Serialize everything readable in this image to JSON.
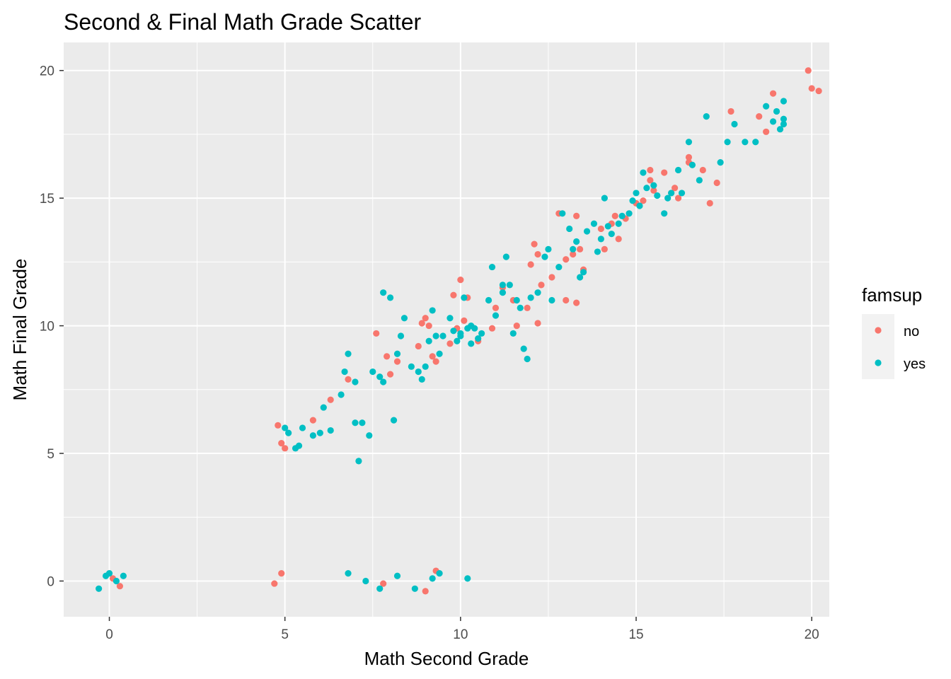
{
  "chart_data": {
    "type": "scatter",
    "title": "Second & Final Math Grade Scatter",
    "xlabel": "Math Second Grade",
    "ylabel": "Math Final Grade",
    "xlim": [
      -1.3,
      20.5
    ],
    "ylim": [
      -1.4,
      21.1
    ],
    "xticks": [
      0,
      5,
      10,
      15,
      20
    ],
    "yticks": [
      0,
      5,
      10,
      15,
      20
    ],
    "grid": true,
    "legend": {
      "title": "famsup",
      "placement": "right"
    },
    "series": [
      {
        "name": "no",
        "color": "#F8766D",
        "points": [
          [
            0.1,
            0.1
          ],
          [
            0.3,
            -0.2
          ],
          [
            4.8,
            6.1
          ],
          [
            4.9,
            5.4
          ],
          [
            5.0,
            5.2
          ],
          [
            4.7,
            -0.1
          ],
          [
            4.9,
            0.3
          ],
          [
            5.8,
            6.3
          ],
          [
            6.3,
            7.1
          ],
          [
            6.8,
            7.9
          ],
          [
            7.6,
            9.7
          ],
          [
            7.9,
            8.8
          ],
          [
            8.0,
            8.1
          ],
          [
            8.2,
            8.6
          ],
          [
            8.8,
            9.2
          ],
          [
            8.9,
            10.1
          ],
          [
            9.0,
            10.3
          ],
          [
            9.1,
            10.0
          ],
          [
            9.3,
            8.6
          ],
          [
            9.2,
            8.8
          ],
          [
            9.7,
            9.3
          ],
          [
            9.8,
            11.2
          ],
          [
            10.0,
            11.8
          ],
          [
            10.1,
            10.2
          ],
          [
            9.9,
            9.9
          ],
          [
            10.2,
            11.1
          ],
          [
            10.5,
            9.4
          ],
          [
            10.9,
            9.9
          ],
          [
            11.0,
            10.7
          ],
          [
            11.2,
            11.5
          ],
          [
            11.5,
            11.0
          ],
          [
            11.6,
            10.0
          ],
          [
            11.9,
            10.7
          ],
          [
            12.0,
            12.4
          ],
          [
            12.1,
            13.2
          ],
          [
            12.3,
            11.6
          ],
          [
            12.2,
            12.8
          ],
          [
            12.6,
            11.9
          ],
          [
            12.8,
            14.4
          ],
          [
            13.0,
            12.6
          ],
          [
            13.2,
            12.8
          ],
          [
            13.3,
            14.3
          ],
          [
            13.4,
            13.0
          ],
          [
            13.3,
            10.9
          ],
          [
            13.5,
            12.2
          ],
          [
            14.0,
            13.8
          ],
          [
            14.3,
            14.0
          ],
          [
            14.4,
            14.3
          ],
          [
            14.1,
            13.0
          ],
          [
            14.5,
            13.4
          ],
          [
            14.7,
            14.2
          ],
          [
            15.2,
            14.9
          ],
          [
            15.4,
            16.1
          ],
          [
            15.4,
            15.7
          ],
          [
            15.5,
            15.3
          ],
          [
            15.0,
            14.8
          ],
          [
            15.8,
            16.0
          ],
          [
            16.0,
            15.2
          ],
          [
            16.1,
            15.4
          ],
          [
            16.2,
            15.0
          ],
          [
            16.5,
            16.6
          ],
          [
            16.5,
            16.4
          ],
          [
            16.9,
            16.1
          ],
          [
            17.1,
            14.8
          ],
          [
            17.3,
            15.6
          ],
          [
            17.7,
            18.4
          ],
          [
            18.5,
            18.2
          ],
          [
            18.7,
            17.6
          ],
          [
            18.9,
            19.1
          ],
          [
            19.9,
            20.0
          ],
          [
            20.0,
            19.3
          ],
          [
            20.2,
            19.2
          ],
          [
            7.8,
            -0.1
          ],
          [
            9.0,
            -0.4
          ],
          [
            9.3,
            0.4
          ],
          [
            12.2,
            10.1
          ],
          [
            13.0,
            11.0
          ]
        ]
      },
      {
        "name": "yes",
        "color": "#00BFC4",
        "points": [
          [
            -0.3,
            -0.3
          ],
          [
            -0.1,
            0.2
          ],
          [
            0.0,
            0.3
          ],
          [
            0.2,
            0.0
          ],
          [
            0.4,
            0.2
          ],
          [
            5.0,
            6.0
          ],
          [
            5.1,
            5.8
          ],
          [
            5.3,
            5.2
          ],
          [
            5.4,
            5.3
          ],
          [
            5.5,
            6.0
          ],
          [
            5.8,
            5.7
          ],
          [
            6.0,
            5.8
          ],
          [
            6.1,
            6.8
          ],
          [
            6.3,
            5.9
          ],
          [
            6.6,
            7.3
          ],
          [
            6.7,
            8.2
          ],
          [
            6.8,
            8.9
          ],
          [
            7.0,
            7.8
          ],
          [
            7.0,
            6.2
          ],
          [
            7.2,
            6.2
          ],
          [
            7.1,
            4.7
          ],
          [
            7.4,
            5.7
          ],
          [
            7.5,
            8.2
          ],
          [
            7.7,
            8.0
          ],
          [
            7.8,
            7.8
          ],
          [
            7.8,
            11.3
          ],
          [
            8.0,
            11.1
          ],
          [
            8.1,
            6.3
          ],
          [
            8.2,
            8.9
          ],
          [
            8.3,
            9.6
          ],
          [
            8.4,
            10.3
          ],
          [
            8.6,
            8.4
          ],
          [
            8.8,
            8.2
          ],
          [
            8.9,
            7.9
          ],
          [
            9.0,
            8.4
          ],
          [
            9.1,
            9.4
          ],
          [
            9.2,
            10.6
          ],
          [
            9.3,
            9.6
          ],
          [
            9.4,
            8.9
          ],
          [
            9.5,
            9.6
          ],
          [
            9.7,
            10.3
          ],
          [
            9.8,
            9.8
          ],
          [
            9.9,
            9.4
          ],
          [
            10.0,
            9.7
          ],
          [
            10.2,
            9.9
          ],
          [
            10.1,
            11.1
          ],
          [
            10.3,
            9.3
          ],
          [
            10.4,
            9.9
          ],
          [
            10.5,
            9.5
          ],
          [
            10.6,
            9.7
          ],
          [
            10.8,
            11.0
          ],
          [
            10.9,
            12.3
          ],
          [
            11.0,
            10.4
          ],
          [
            11.2,
            11.3
          ],
          [
            11.3,
            12.7
          ],
          [
            11.4,
            11.6
          ],
          [
            11.6,
            11.0
          ],
          [
            11.7,
            10.7
          ],
          [
            11.8,
            9.1
          ],
          [
            11.9,
            8.7
          ],
          [
            12.0,
            11.1
          ],
          [
            12.2,
            11.3
          ],
          [
            12.4,
            12.7
          ],
          [
            12.5,
            13.0
          ],
          [
            12.6,
            11.0
          ],
          [
            12.8,
            12.3
          ],
          [
            12.9,
            14.4
          ],
          [
            13.1,
            13.8
          ],
          [
            13.2,
            13.0
          ],
          [
            13.3,
            13.3
          ],
          [
            13.4,
            11.9
          ],
          [
            13.5,
            12.1
          ],
          [
            13.6,
            13.7
          ],
          [
            13.8,
            14.0
          ],
          [
            13.9,
            12.9
          ],
          [
            14.0,
            13.4
          ],
          [
            14.1,
            15.0
          ],
          [
            14.2,
            13.9
          ],
          [
            14.3,
            13.6
          ],
          [
            14.5,
            14.0
          ],
          [
            14.6,
            14.3
          ],
          [
            14.8,
            14.4
          ],
          [
            14.9,
            14.9
          ],
          [
            15.0,
            15.2
          ],
          [
            15.1,
            14.7
          ],
          [
            15.2,
            16.0
          ],
          [
            15.3,
            15.4
          ],
          [
            15.5,
            15.5
          ],
          [
            15.6,
            15.1
          ],
          [
            15.8,
            14.4
          ],
          [
            15.9,
            15.0
          ],
          [
            16.0,
            15.2
          ],
          [
            16.2,
            16.1
          ],
          [
            16.3,
            15.2
          ],
          [
            16.5,
            17.2
          ],
          [
            16.6,
            16.3
          ],
          [
            16.8,
            15.7
          ],
          [
            17.0,
            18.2
          ],
          [
            17.4,
            16.4
          ],
          [
            17.6,
            17.2
          ],
          [
            17.8,
            17.9
          ],
          [
            18.1,
            17.2
          ],
          [
            18.4,
            17.2
          ],
          [
            18.7,
            18.6
          ],
          [
            18.9,
            18.0
          ],
          [
            19.0,
            18.4
          ],
          [
            19.1,
            17.7
          ],
          [
            19.2,
            18.1
          ],
          [
            19.2,
            17.9
          ],
          [
            19.2,
            18.8
          ],
          [
            6.8,
            0.3
          ],
          [
            7.3,
            0.0
          ],
          [
            7.7,
            -0.3
          ],
          [
            8.2,
            0.2
          ],
          [
            8.7,
            -0.3
          ],
          [
            9.2,
            0.1
          ],
          [
            9.4,
            0.3
          ],
          [
            10.2,
            0.1
          ],
          [
            10.0,
            9.6
          ],
          [
            10.3,
            10.0
          ],
          [
            11.2,
            11.6
          ],
          [
            11.5,
            9.7
          ]
        ]
      }
    ]
  }
}
